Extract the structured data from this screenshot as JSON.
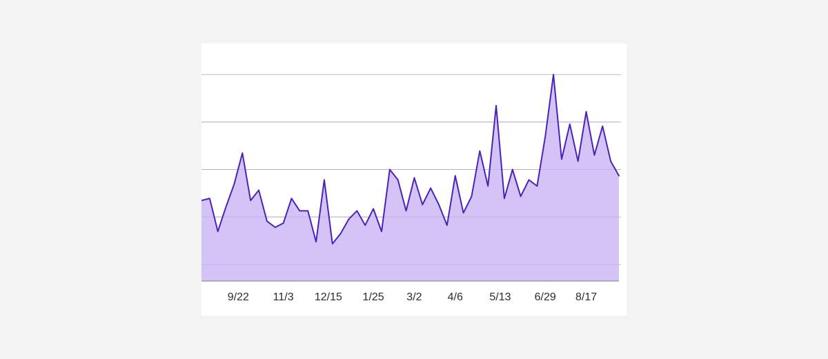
{
  "chart_data": {
    "type": "area",
    "title": "",
    "xlabel": "",
    "ylabel": "",
    "ylim": [
      0,
      100
    ],
    "y_gridlines": [
      8,
      31,
      54,
      77,
      100
    ],
    "x_ticks": [
      "9/22",
      "11/3",
      "12/15",
      "1/25",
      "3/2",
      "4/6",
      "5/13",
      "6/29",
      "8/17"
    ],
    "x_tick_indices": [
      4.5,
      10,
      15.5,
      21,
      26,
      31,
      36.5,
      42,
      47
    ],
    "grid": true,
    "legend": "none",
    "colors": {
      "line": "#4a22b8",
      "fill": "#d3c3f6",
      "grid": "#b9b9c2",
      "axis": "#8e8a9c"
    },
    "series": [
      {
        "values": [
          39,
          40,
          24,
          36,
          47,
          62,
          39,
          44,
          29,
          26,
          28,
          40,
          34,
          34,
          19,
          49,
          18,
          23,
          30,
          34,
          27,
          35,
          24,
          54,
          49,
          34,
          50,
          37,
          45,
          37,
          27,
          51,
          33,
          41,
          63,
          46,
          85,
          40,
          54,
          41,
          49,
          46,
          70,
          100,
          59,
          76,
          58,
          82,
          61,
          75,
          58,
          51
        ]
      }
    ]
  }
}
